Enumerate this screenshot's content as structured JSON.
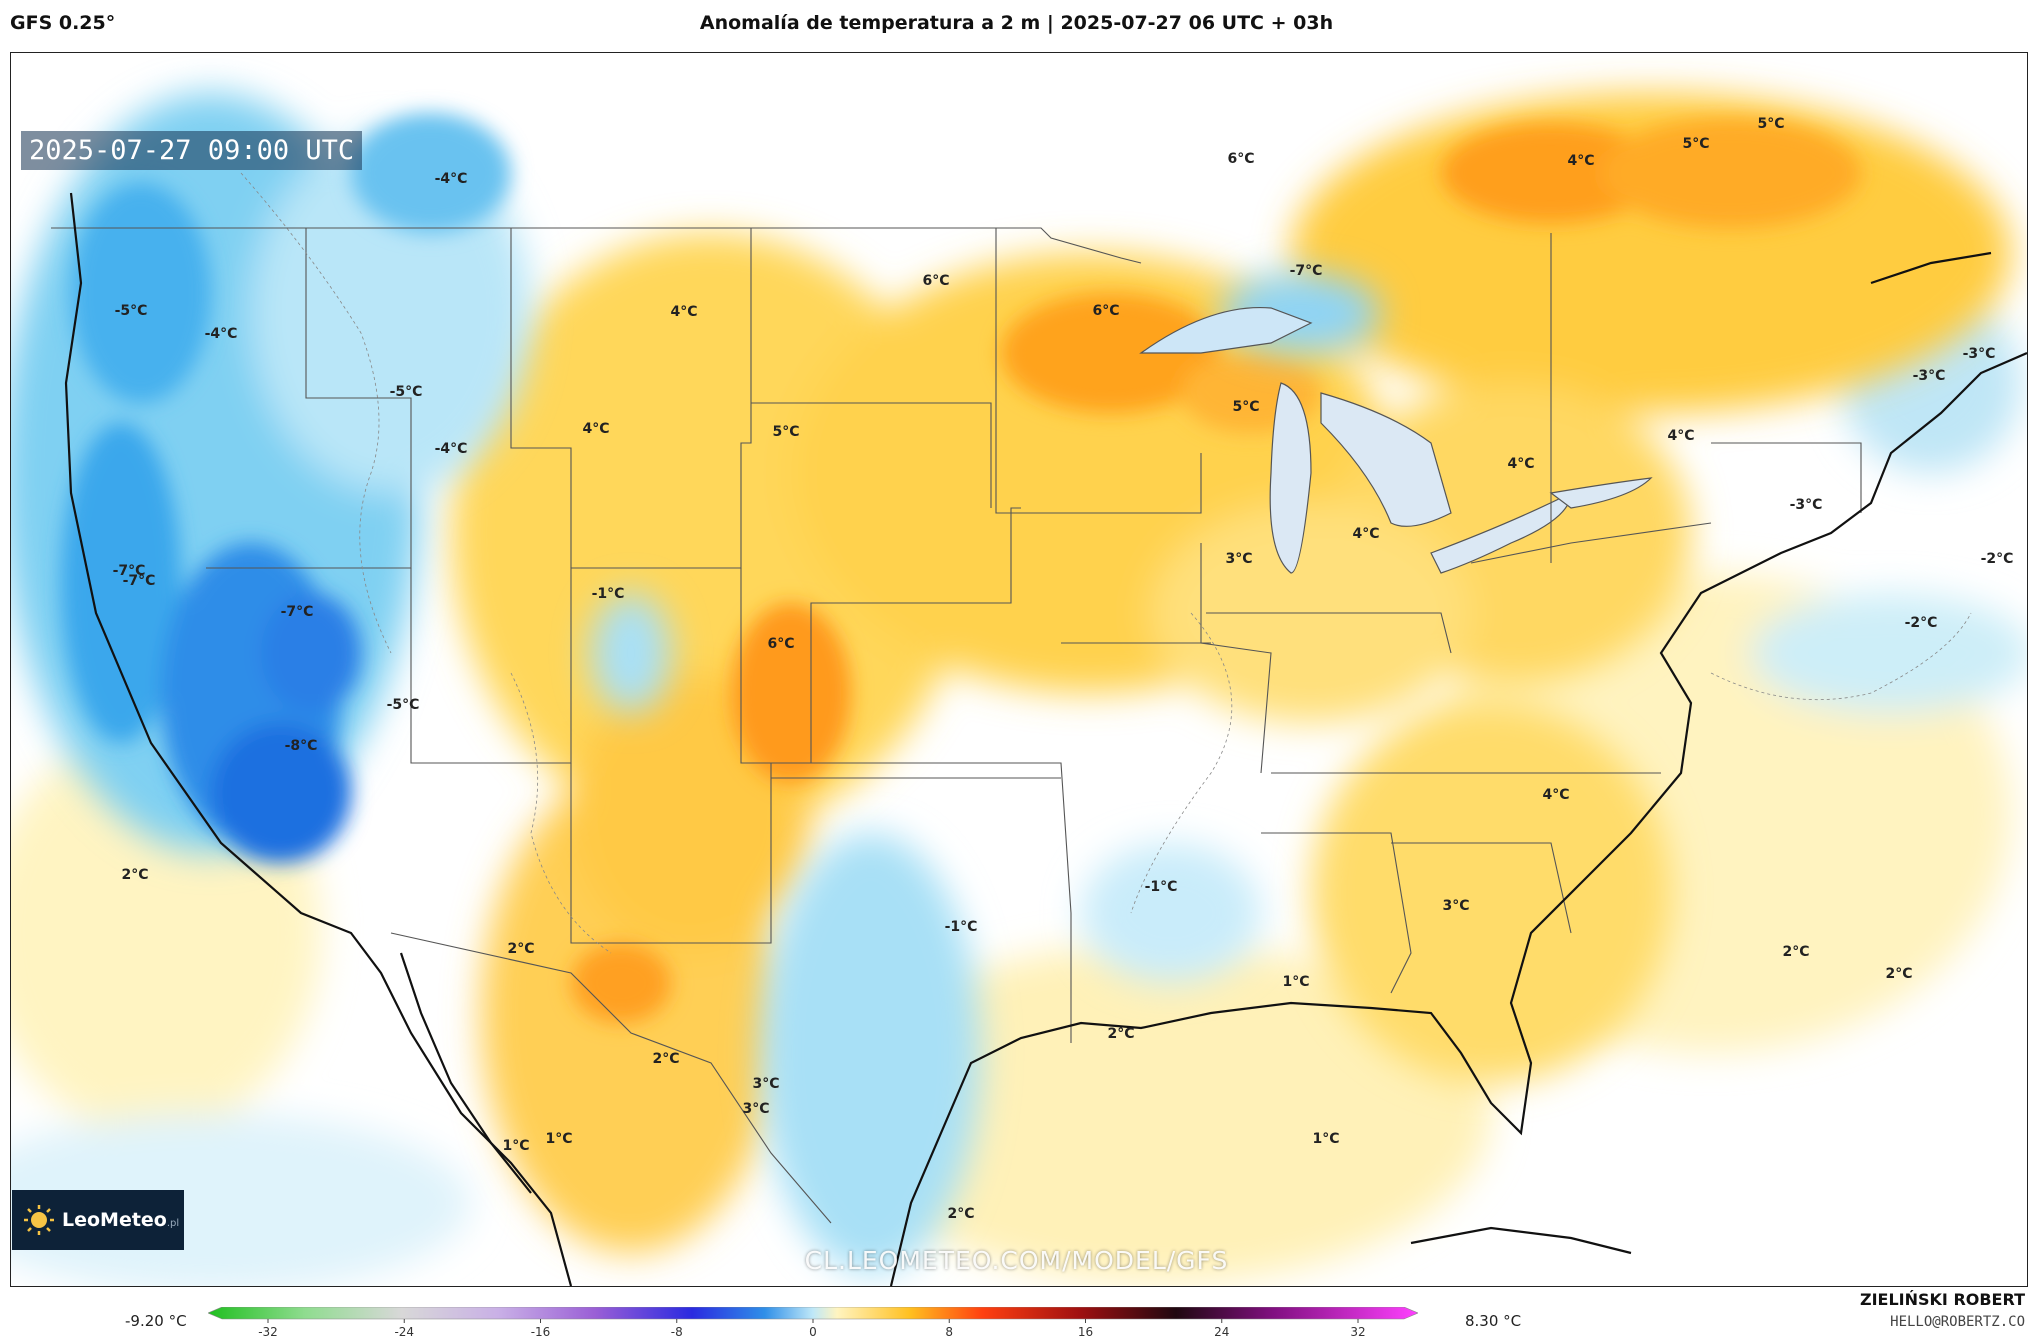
{
  "header": {
    "model": "GFS 0.25°",
    "title": "Anomalía de temperatura a 2 m | 2025-07-27 06 UTC + 03h"
  },
  "map": {
    "valid_time": "2025-07-27 09:00 UTC",
    "watermark": "CL.LEOMETEO.COM/MODEL/GFS",
    "brand": {
      "name": "LeoMeteo",
      "suffix": ".pl"
    },
    "labels": [
      "-4°C",
      "-5°C",
      "-4°C",
      "-5°C",
      "-4°C",
      "-7°C",
      "-7°C",
      "-7°C",
      "-8°C",
      "-5°C",
      "-1°C",
      "2°C",
      "4°C",
      "4°C",
      "5°C",
      "6°C",
      "6°C",
      "6°C",
      "5°C",
      "6°C",
      "4°C",
      "5°C",
      "5°C",
      "-7°C",
      "4°C",
      "4°C",
      "3°C",
      "4°C",
      "-3°C",
      "-3°C",
      "-3°C",
      "-2°C",
      "-2°C",
      "4°C",
      "3°C",
      "-1°C",
      "-1°C",
      "1°C",
      "2°C",
      "2°C",
      "2°C",
      "2°C",
      "1°C",
      "2°C",
      "3°C",
      "3°C",
      "1°C",
      "1°C",
      "2°C"
    ]
  },
  "colorbar": {
    "min_label": "-9.20 °C",
    "max_label": "8.30 °C",
    "ticks": [
      "-32",
      "-24",
      "-16",
      "-8",
      "0",
      "8",
      "16",
      "24",
      "32"
    ]
  },
  "credit": {
    "author": "ZIELIŃSKI ROBERT",
    "email": "HELLO@ROBERTZ.CO"
  }
}
